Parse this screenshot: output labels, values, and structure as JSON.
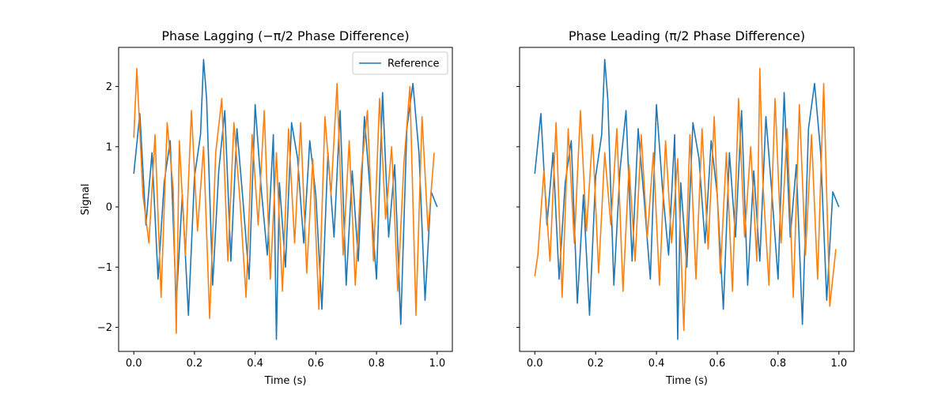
{
  "chart_data": [
    {
      "type": "line",
      "title": "Phase Lagging (−π/2 Phase Difference)",
      "xlabel": "Time (s)",
      "ylabel": "Signal",
      "xlim": [
        -0.05,
        1.05
      ],
      "ylim": [
        -2.4,
        2.65
      ],
      "xticks": [
        0.0,
        0.2,
        0.4,
        0.6,
        0.8,
        1.0
      ],
      "xtick_labels": [
        "0.0",
        "0.2",
        "0.4",
        "0.6",
        "0.8",
        "1.0"
      ],
      "yticks": [
        -2,
        -1,
        0,
        1,
        2
      ],
      "ytick_labels": [
        "−2",
        "−1",
        "0",
        "1",
        "2"
      ],
      "legend": {
        "placement": "top-right",
        "entries": [
          "Reference"
        ]
      },
      "grid": false,
      "series": [
        {
          "name": "Reference",
          "color": "#1f77b4",
          "x": [
            0.0,
            0.02,
            0.04,
            0.06,
            0.08,
            0.1,
            0.12,
            0.14,
            0.16,
            0.18,
            0.2,
            0.22,
            0.23,
            0.24,
            0.26,
            0.28,
            0.3,
            0.32,
            0.34,
            0.36,
            0.38,
            0.4,
            0.42,
            0.44,
            0.46,
            0.47,
            0.48,
            0.5,
            0.52,
            0.54,
            0.56,
            0.58,
            0.6,
            0.62,
            0.64,
            0.66,
            0.68,
            0.7,
            0.72,
            0.74,
            0.76,
            0.78,
            0.8,
            0.82,
            0.84,
            0.86,
            0.88,
            0.9,
            0.92,
            0.94,
            0.96,
            0.98,
            1.0
          ],
          "y": [
            0.55,
            1.55,
            -0.3,
            0.9,
            -1.2,
            0.4,
            1.1,
            -1.6,
            0.2,
            -1.8,
            0.5,
            1.2,
            2.45,
            1.8,
            -1.3,
            0.6,
            1.6,
            -0.9,
            1.3,
            0.1,
            -1.2,
            1.7,
            0.3,
            -0.8,
            1.2,
            -2.2,
            0.4,
            -1.0,
            1.4,
            0.8,
            -0.6,
            1.1,
            0.2,
            -1.7,
            0.9,
            -0.5,
            1.6,
            -1.3,
            0.6,
            -0.9,
            1.5,
            0.2,
            -1.2,
            1.9,
            -0.5,
            0.7,
            -1.95,
            1.3,
            2.05,
            0.9,
            -1.55,
            0.25,
            0.0
          ]
        },
        {
          "name": "",
          "color": "#ff7f0e",
          "x": [
            0.0,
            0.01,
            0.03,
            0.05,
            0.07,
            0.09,
            0.11,
            0.13,
            0.14,
            0.15,
            0.17,
            0.19,
            0.21,
            0.23,
            0.25,
            0.27,
            0.29,
            0.31,
            0.33,
            0.35,
            0.37,
            0.39,
            0.41,
            0.43,
            0.45,
            0.47,
            0.49,
            0.51,
            0.53,
            0.55,
            0.57,
            0.59,
            0.61,
            0.63,
            0.65,
            0.67,
            0.69,
            0.71,
            0.73,
            0.75,
            0.77,
            0.79,
            0.81,
            0.83,
            0.85,
            0.87,
            0.89,
            0.91,
            0.93,
            0.95,
            0.97,
            0.99
          ],
          "y": [
            1.15,
            2.3,
            0.2,
            -0.6,
            1.2,
            -1.5,
            1.4,
            0.3,
            -2.1,
            1.1,
            -0.8,
            1.6,
            -0.4,
            1.0,
            -1.85,
            0.9,
            1.8,
            -0.9,
            1.4,
            0.1,
            -1.5,
            1.2,
            -0.3,
            1.6,
            -1.2,
            0.9,
            -1.4,
            1.3,
            -0.6,
            1.4,
            -1.1,
            0.8,
            -1.7,
            1.5,
            0.2,
            2.05,
            -0.8,
            1.1,
            -1.3,
            0.6,
            1.6,
            -0.9,
            1.8,
            -0.2,
            1.0,
            -1.4,
            0.7,
            2.0,
            -1.8,
            1.5,
            -0.4,
            0.9
          ]
        }
      ]
    },
    {
      "type": "line",
      "title": "Phase Leading (π/2 Phase Difference)",
      "xlabel": "Time (s)",
      "ylabel": "",
      "xlim": [
        -0.05,
        1.05
      ],
      "ylim": [
        -2.4,
        2.65
      ],
      "xticks": [
        0.0,
        0.2,
        0.4,
        0.6,
        0.8,
        1.0
      ],
      "xtick_labels": [
        "0.0",
        "0.2",
        "0.4",
        "0.6",
        "0.8",
        "1.0"
      ],
      "yticks": [
        -2,
        -1,
        0,
        1,
        2
      ],
      "ytick_labels": [],
      "legend": null,
      "grid": false,
      "series": [
        {
          "name": "",
          "color": "#1f77b4",
          "x": [
            0.0,
            0.02,
            0.04,
            0.06,
            0.08,
            0.1,
            0.12,
            0.14,
            0.16,
            0.18,
            0.2,
            0.22,
            0.23,
            0.24,
            0.26,
            0.28,
            0.3,
            0.32,
            0.34,
            0.36,
            0.38,
            0.4,
            0.42,
            0.44,
            0.46,
            0.47,
            0.48,
            0.5,
            0.52,
            0.54,
            0.56,
            0.58,
            0.6,
            0.62,
            0.64,
            0.66,
            0.68,
            0.7,
            0.72,
            0.74,
            0.76,
            0.78,
            0.8,
            0.82,
            0.84,
            0.86,
            0.88,
            0.9,
            0.92,
            0.94,
            0.96,
            0.98,
            1.0
          ],
          "y": [
            0.55,
            1.55,
            -0.3,
            0.9,
            -1.2,
            0.4,
            1.1,
            -1.6,
            0.2,
            -1.8,
            0.5,
            1.2,
            2.45,
            1.8,
            -1.3,
            0.6,
            1.6,
            -0.9,
            1.3,
            0.1,
            -1.2,
            1.7,
            0.3,
            -0.8,
            1.2,
            -2.2,
            0.4,
            -1.0,
            1.4,
            0.8,
            -0.6,
            1.1,
            0.2,
            -1.7,
            0.9,
            -0.5,
            1.6,
            -1.3,
            0.6,
            -0.9,
            1.5,
            0.2,
            -1.2,
            1.9,
            -0.5,
            0.7,
            -1.95,
            1.3,
            2.05,
            0.9,
            -1.55,
            0.25,
            0.0
          ]
        },
        {
          "name": "",
          "color": "#ff7f0e",
          "x": [
            0.0,
            0.01,
            0.03,
            0.05,
            0.07,
            0.09,
            0.11,
            0.13,
            0.15,
            0.17,
            0.19,
            0.21,
            0.23,
            0.25,
            0.27,
            0.29,
            0.31,
            0.33,
            0.35,
            0.37,
            0.39,
            0.41,
            0.43,
            0.45,
            0.47,
            0.49,
            0.51,
            0.53,
            0.55,
            0.57,
            0.59,
            0.61,
            0.63,
            0.65,
            0.67,
            0.69,
            0.71,
            0.73,
            0.74,
            0.75,
            0.77,
            0.79,
            0.81,
            0.83,
            0.85,
            0.87,
            0.89,
            0.91,
            0.93,
            0.95,
            0.97,
            0.99
          ],
          "y": [
            -1.15,
            -0.8,
            0.6,
            -0.9,
            1.4,
            -1.5,
            1.3,
            -0.6,
            1.6,
            -0.4,
            1.2,
            -1.1,
            0.9,
            -0.3,
            1.3,
            -1.4,
            0.7,
            -0.9,
            1.2,
            -0.5,
            0.9,
            -1.3,
            1.1,
            -0.6,
            0.8,
            -2.05,
            1.2,
            -1.2,
            1.3,
            -0.7,
            1.5,
            -1.1,
            0.9,
            -1.4,
            1.8,
            -0.5,
            1.0,
            -0.9,
            2.3,
            0.4,
            -1.3,
            1.8,
            -0.6,
            1.3,
            -1.5,
            1.7,
            -0.8,
            1.2,
            -1.2,
            2.05,
            -1.65,
            -0.7
          ]
        }
      ]
    }
  ]
}
